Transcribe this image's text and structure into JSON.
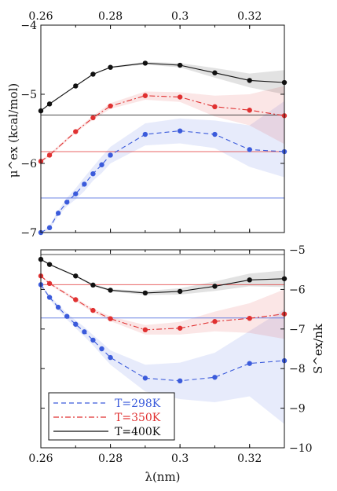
{
  "chart_data": [
    {
      "type": "line",
      "panel": "top",
      "xlabel": "",
      "xlim": [
        0.26,
        0.33
      ],
      "ylabel": "μ^ex (kcal/mol)",
      "ylim": [
        -7,
        -4
      ],
      "x_ticks": [
        0.26,
        0.28,
        0.3,
        0.32
      ],
      "x_tick_labels": [
        "0.26",
        "0.28",
        "0.3",
        "0.32"
      ],
      "x_ticks_position": "top",
      "y_ticks": [
        -7,
        -6,
        -5,
        -4
      ],
      "y_tick_labels": [
        "−7",
        "−6",
        "−5",
        "−4"
      ],
      "grid": false,
      "series": [
        {
          "name": "T=298K",
          "color": "#3b5bdb",
          "dash": "dashed",
          "x": [
            0.26,
            0.2625,
            0.265,
            0.2675,
            0.27,
            0.2725,
            0.275,
            0.2775,
            0.28,
            0.29,
            0.3,
            0.31,
            0.32,
            0.33
          ],
          "y": [
            -7.0,
            -6.93,
            -6.72,
            -6.56,
            -6.44,
            -6.3,
            -6.15,
            -6.02,
            -5.88,
            -5.58,
            -5.53,
            -5.58,
            -5.8,
            -5.83
          ],
          "band_upper": [
            -7.0,
            -6.9,
            -6.68,
            -6.5,
            -6.36,
            -6.2,
            -6.05,
            -5.9,
            -5.76,
            -5.42,
            -5.35,
            -5.38,
            -5.45,
            -5.1
          ],
          "band_lower": [
            -7.0,
            -6.96,
            -6.76,
            -6.62,
            -6.52,
            -6.4,
            -6.25,
            -6.14,
            -6.0,
            -5.74,
            -5.71,
            -5.78,
            -6.05,
            -6.2
          ],
          "reference": -6.5
        },
        {
          "name": "T=350K",
          "color": "#e03131",
          "dash": "dashdot",
          "x": [
            0.26,
            0.2625,
            0.27,
            0.275,
            0.28,
            0.29,
            0.3,
            0.31,
            0.32,
            0.33
          ],
          "y": [
            -5.97,
            -5.88,
            -5.54,
            -5.34,
            -5.17,
            -5.02,
            -5.04,
            -5.18,
            -5.23,
            -5.31
          ],
          "band_upper": [
            -5.95,
            -5.86,
            -5.52,
            -5.31,
            -5.13,
            -4.96,
            -4.97,
            -5.02,
            -5.0,
            -4.88
          ],
          "band_lower": [
            -5.99,
            -5.9,
            -5.56,
            -5.37,
            -5.21,
            -5.08,
            -5.11,
            -5.32,
            -5.45,
            -5.72
          ],
          "reference": -5.83
        },
        {
          "name": "T=400K",
          "color": "#111111",
          "dash": "solid",
          "x": [
            0.26,
            0.2625,
            0.27,
            0.275,
            0.28,
            0.29,
            0.3,
            0.31,
            0.32,
            0.33
          ],
          "y": [
            -5.24,
            -5.14,
            -4.88,
            -4.71,
            -4.61,
            -4.55,
            -4.58,
            -4.69,
            -4.8,
            -4.83
          ],
          "band_upper": [
            -5.23,
            -5.13,
            -4.87,
            -4.7,
            -4.6,
            -4.53,
            -4.55,
            -4.62,
            -4.7,
            -4.65
          ],
          "band_lower": [
            -5.25,
            -5.15,
            -4.89,
            -4.72,
            -4.62,
            -4.57,
            -4.61,
            -4.76,
            -4.9,
            -5.0
          ],
          "reference": -5.3
        }
      ]
    },
    {
      "type": "line",
      "panel": "bottom",
      "xlabel": "λ(nm)",
      "xlim": [
        0.26,
        0.33
      ],
      "ylabel": "S^ex/nk",
      "ylabel_side": "right",
      "ylim": [
        -10,
        -5
      ],
      "x_ticks": [
        0.26,
        0.28,
        0.3,
        0.32
      ],
      "x_tick_labels": [
        "0.26",
        "0.28",
        "0.3",
        "0.32"
      ],
      "y_ticks": [
        -10,
        -9,
        -8,
        -7,
        -6,
        -5
      ],
      "y_tick_labels": [
        "−10",
        "−9",
        "−8",
        "−7",
        "−6",
        "−5"
      ],
      "grid": false,
      "legend": "bottom-left",
      "series": [
        {
          "name": "T=298K",
          "color": "#3b5bdb",
          "dash": "dashed",
          "x": [
            0.26,
            0.2625,
            0.265,
            0.2675,
            0.27,
            0.2725,
            0.275,
            0.2775,
            0.28,
            0.29,
            0.3,
            0.31,
            0.32,
            0.33
          ],
          "y": [
            -5.88,
            -6.2,
            -6.45,
            -6.68,
            -6.88,
            -7.07,
            -7.28,
            -7.5,
            -7.72,
            -8.24,
            -8.31,
            -8.22,
            -7.87,
            -7.8
          ],
          "band_upper": [
            -5.86,
            -6.15,
            -6.38,
            -6.6,
            -6.78,
            -6.95,
            -7.15,
            -7.34,
            -7.54,
            -7.9,
            -7.85,
            -7.6,
            -7.05,
            -6.5
          ],
          "band_lower": [
            -5.9,
            -6.25,
            -6.52,
            -6.76,
            -6.98,
            -7.19,
            -7.41,
            -7.66,
            -7.9,
            -8.58,
            -8.77,
            -8.85,
            -8.7,
            -9.4
          ],
          "reference": -6.72
        },
        {
          "name": "T=350K",
          "color": "#e03131",
          "dash": "dashdot",
          "x": [
            0.26,
            0.2625,
            0.27,
            0.275,
            0.28,
            0.29,
            0.3,
            0.31,
            0.32,
            0.33
          ],
          "y": [
            -5.66,
            -5.85,
            -6.26,
            -6.53,
            -6.74,
            -7.02,
            -6.98,
            -6.81,
            -6.73,
            -6.62
          ],
          "band_upper": [
            -5.64,
            -5.82,
            -6.22,
            -6.48,
            -6.68,
            -6.9,
            -6.82,
            -6.56,
            -6.35,
            -6.0
          ],
          "band_lower": [
            -5.68,
            -5.88,
            -6.3,
            -6.58,
            -6.8,
            -7.14,
            -7.14,
            -7.06,
            -7.1,
            -7.25
          ],
          "reference": -5.88
        },
        {
          "name": "T=400K",
          "color": "#111111",
          "dash": "solid",
          "x": [
            0.26,
            0.2625,
            0.27,
            0.275,
            0.28,
            0.29,
            0.3,
            0.31,
            0.32,
            0.33
          ],
          "y": [
            -5.24,
            -5.37,
            -5.66,
            -5.89,
            -6.02,
            -6.09,
            -6.05,
            -5.92,
            -5.76,
            -5.73
          ],
          "band_upper": [
            -5.23,
            -5.35,
            -5.64,
            -5.86,
            -5.99,
            -6.04,
            -5.97,
            -5.8,
            -5.6,
            -5.52
          ],
          "band_lower": [
            -5.25,
            -5.39,
            -5.68,
            -5.92,
            -6.05,
            -6.14,
            -6.13,
            -6.04,
            -5.92,
            -5.94
          ],
          "reference": -5.12
        }
      ]
    }
  ]
}
